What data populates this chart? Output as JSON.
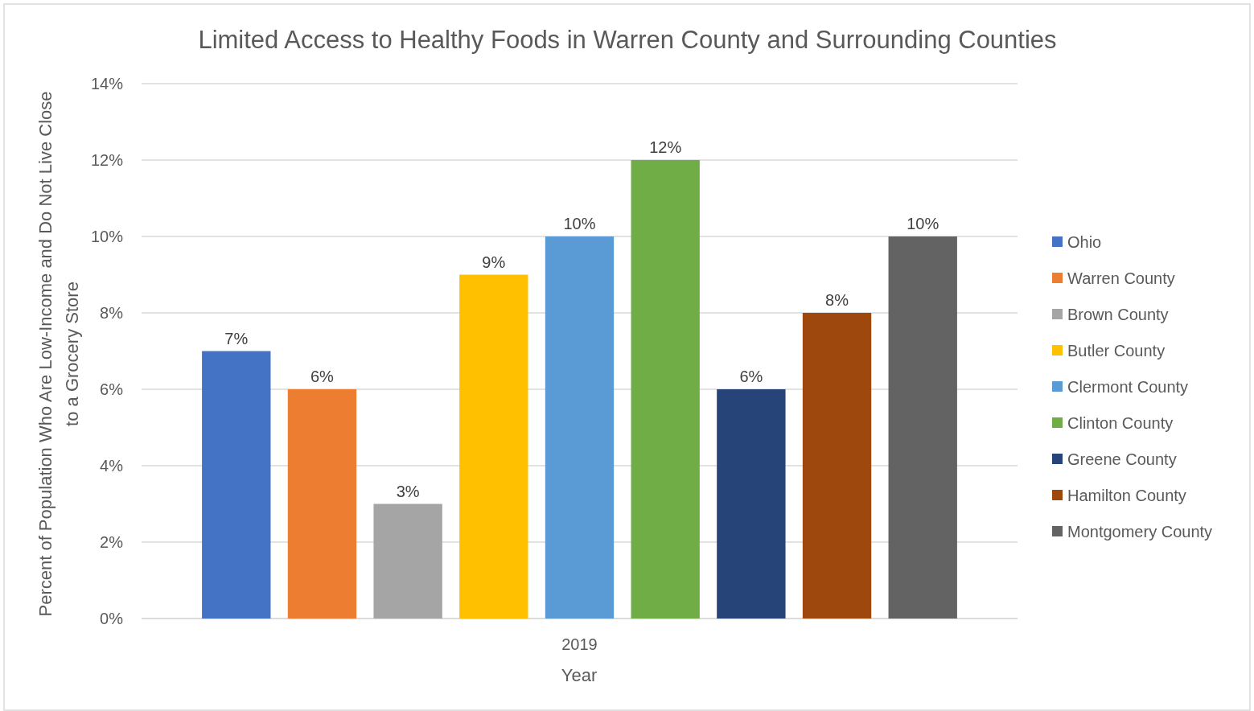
{
  "chart_data": {
    "type": "bar",
    "title": "Limited Access to Healthy Foods in Warren County and Surrounding Counties",
    "xlabel": "Year",
    "ylabel": "Percent of Population Who Are Low-Income and Do Not Live Close to a Grocery Store",
    "categories": [
      "2019"
    ],
    "series": [
      {
        "name": "Ohio",
        "color": "#4472c4",
        "values": [
          7
        ],
        "value_labels": [
          "7%"
        ]
      },
      {
        "name": "Warren County",
        "color": "#ed7d31",
        "values": [
          6
        ],
        "value_labels": [
          "6%"
        ]
      },
      {
        "name": "Brown County",
        "color": "#a5a5a5",
        "values": [
          3
        ],
        "value_labels": [
          "3%"
        ]
      },
      {
        "name": "Butler County",
        "color": "#ffc000",
        "values": [
          9
        ],
        "value_labels": [
          "9%"
        ]
      },
      {
        "name": "Clermont County",
        "color": "#5b9bd5",
        "values": [
          10
        ],
        "value_labels": [
          "10%"
        ]
      },
      {
        "name": "Clinton County",
        "color": "#70ad47",
        "values": [
          12
        ],
        "value_labels": [
          "12%"
        ]
      },
      {
        "name": "Greene County",
        "color": "#264478",
        "values": [
          6
        ],
        "value_labels": [
          "6%"
        ]
      },
      {
        "name": "Hamilton County",
        "color": "#9e480e",
        "values": [
          8
        ],
        "value_labels": [
          "8%"
        ]
      },
      {
        "name": "Montgomery County",
        "color": "#636363",
        "values": [
          10
        ],
        "value_labels": [
          "10%"
        ]
      }
    ],
    "ylim": [
      0,
      14
    ],
    "yticks": [
      {
        "value": 0,
        "label": "0%"
      },
      {
        "value": 2,
        "label": "2%"
      },
      {
        "value": 4,
        "label": "4%"
      },
      {
        "value": 6,
        "label": "6%"
      },
      {
        "value": 8,
        "label": "8%"
      },
      {
        "value": 10,
        "label": "10%"
      },
      {
        "value": 12,
        "label": "12%"
      },
      {
        "value": 14,
        "label": "14%"
      }
    ],
    "grid": "y",
    "legend": "right"
  }
}
